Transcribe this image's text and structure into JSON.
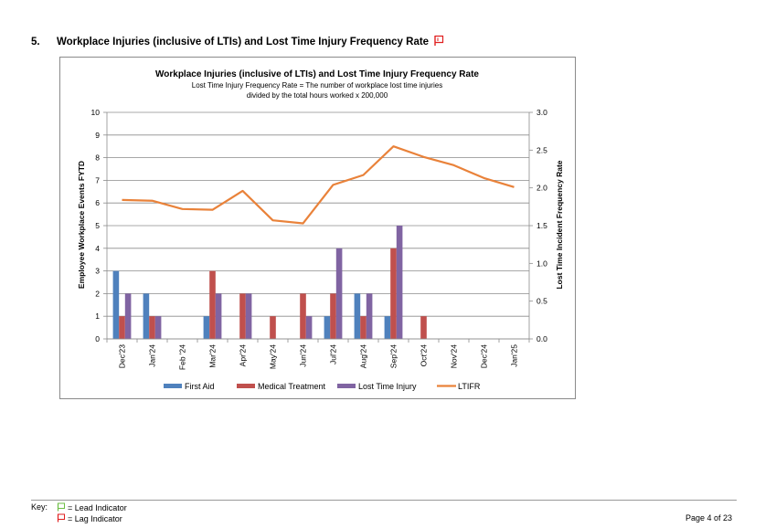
{
  "heading": {
    "number": "5.",
    "text": "Workplace Injuries (inclusive of LTIs) and Lost Time Injury Frequency Rate",
    "flag_icon": "lag-indicator-flag-icon"
  },
  "chart_data": {
    "type": "bar",
    "title": "Workplace Injuries (inclusive of LTIs) and Lost Time Injury Frequency Rate",
    "subtitle_lines": [
      "Lost Time Injury Frequency Rate = The number of workplace lost time injuries",
      "divided by the total hours worked  x 200,000"
    ],
    "ylabel": "Employee Workplace Events FYTD",
    "y2label": "Lost Time Incident Frequency Rate",
    "ylim": [
      0,
      10
    ],
    "y_ticks": [
      "0",
      "1",
      "2",
      "3",
      "4",
      "5",
      "6",
      "7",
      "8",
      "9",
      "10"
    ],
    "y2lim": [
      0,
      3.0
    ],
    "y2_ticks": [
      "0.0",
      "0.5",
      "1.0",
      "1.5",
      "2.0",
      "2.5",
      "3.0"
    ],
    "categories": [
      "Dec'23",
      "Jan'24",
      "Feb '24",
      "Mar'24",
      "Apr'24",
      "May'24",
      "Jun'24",
      "Jul'24",
      "Aug'24",
      "Sep'24",
      "Oct'24",
      "Nov'24",
      "Dec'24",
      "Jan'25"
    ],
    "grid": true,
    "legend_position": "bottom",
    "series": [
      {
        "name": "First Aid",
        "type": "bar",
        "axis": "left",
        "color": "#4F81BD",
        "values": [
          3,
          2,
          0,
          1,
          0,
          0,
          0,
          1,
          2,
          1,
          0,
          0,
          0,
          0
        ]
      },
      {
        "name": "Medical Treatment",
        "type": "bar",
        "axis": "left",
        "color": "#C0504D",
        "values": [
          1,
          1,
          0,
          3,
          2,
          1,
          2,
          2,
          1,
          4,
          1,
          0,
          0,
          0
        ]
      },
      {
        "name": "Lost Time Injury",
        "type": "bar",
        "axis": "left",
        "color": "#8064A2",
        "values": [
          2,
          1,
          0,
          2,
          2,
          0,
          1,
          4,
          2,
          5,
          0,
          0,
          0,
          0
        ]
      },
      {
        "name": "LTIFR",
        "type": "line",
        "axis": "right",
        "color": "#E9823A",
        "values": [
          1.84,
          1.83,
          1.72,
          1.71,
          1.96,
          1.57,
          1.53,
          2.04,
          2.17,
          2.55,
          2.41,
          2.3,
          2.13,
          2.01
        ]
      }
    ]
  },
  "footer": {
    "key_label": "Key:",
    "lead_indicator": "= Lead Indicator",
    "lag_indicator": "= Lag Indicator",
    "lead_icon": "lead-indicator-flag-icon",
    "lag_icon": "lag-indicator-flag-icon",
    "lead_color": "#6DBE45",
    "lag_color": "#E02020",
    "page": "Page 4 of 23"
  }
}
